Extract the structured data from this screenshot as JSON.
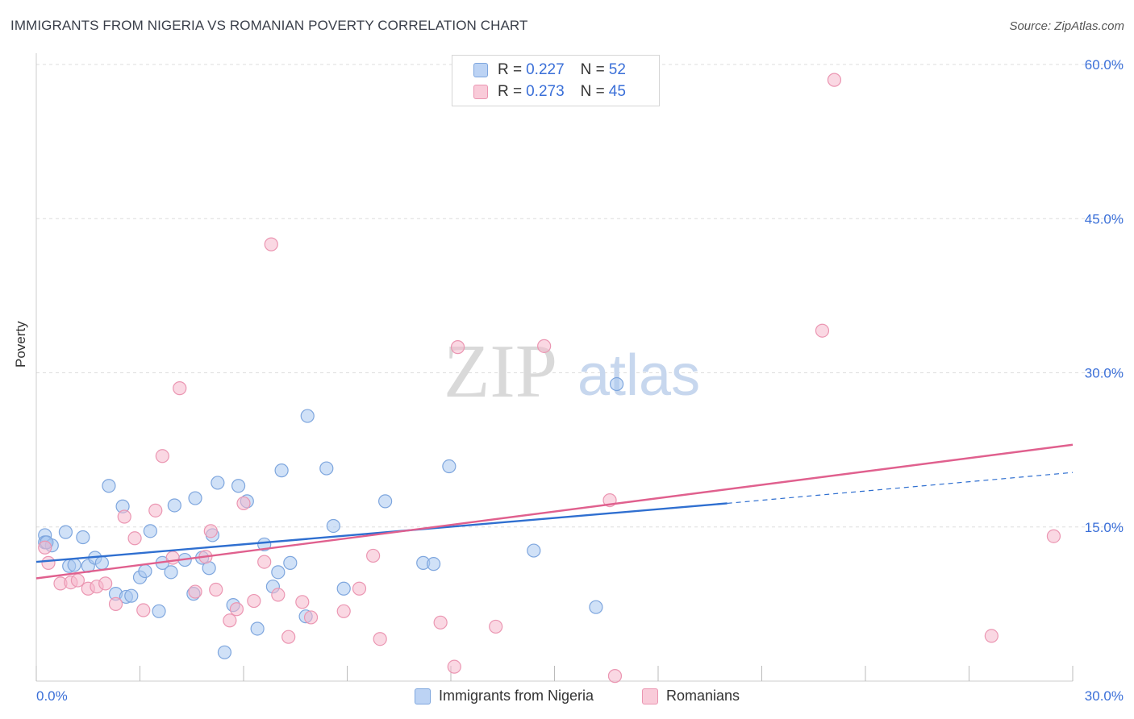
{
  "title": "IMMIGRANTS FROM NIGERIA VS ROMANIAN POVERTY CORRELATION CHART",
  "source": "Source: ZipAtlas.com",
  "watermark": {
    "zip": "ZIP",
    "atlas": "atlas"
  },
  "colors": {
    "blue_fill": "#aac8f0",
    "blue_stroke": "#7ea6de",
    "blue_line": "#2f6fd0",
    "pink_fill": "#f6b8cc",
    "pink_stroke": "#eb96b2",
    "pink_line": "#e0608e",
    "tick_label": "#3a6fd8",
    "grid": "#dddddd"
  },
  "legend": {
    "rows": [
      {
        "r_label": "R = ",
        "r_value": "0.227",
        "n_label": "N = ",
        "n_value": "52",
        "color": "blue"
      },
      {
        "r_label": "R = ",
        "r_value": "0.273",
        "n_label": "N = ",
        "n_value": "45",
        "color": "pink"
      }
    ]
  },
  "bottom_legend": [
    "Immigrants from Nigeria",
    "Romanians"
  ],
  "chart_data": {
    "type": "scatter",
    "xlabel": "",
    "ylabel": "Poverty",
    "xlim": [
      0,
      30
    ],
    "ylim": [
      0,
      60
    ],
    "x_tick_labels": [
      "0.0%",
      "30.0%"
    ],
    "y_ticks": [
      15,
      30,
      45,
      60
    ],
    "y_tick_labels": [
      "15.0%",
      "30.0%",
      "45.0%",
      "60.0%"
    ],
    "grid": true,
    "legend_position": "top-center",
    "series": [
      {
        "name": "Immigrants from Nigeria",
        "color": "blue",
        "points": [
          [
            0.25,
            14.2
          ],
          [
            0.25,
            13.5
          ],
          [
            0.45,
            13.2
          ],
          [
            0.85,
            14.5
          ],
          [
            0.95,
            11.2
          ],
          [
            1.1,
            11.3
          ],
          [
            1.35,
            14.0
          ],
          [
            1.5,
            11.2
          ],
          [
            1.7,
            12.0
          ],
          [
            1.9,
            11.5
          ],
          [
            2.1,
            19.0
          ],
          [
            2.3,
            8.5
          ],
          [
            2.5,
            17.0
          ],
          [
            2.6,
            8.2
          ],
          [
            2.75,
            8.3
          ],
          [
            3.0,
            10.1
          ],
          [
            3.15,
            10.7
          ],
          [
            3.3,
            14.6
          ],
          [
            3.55,
            6.8
          ],
          [
            3.65,
            11.5
          ],
          [
            3.9,
            10.6
          ],
          [
            4.0,
            17.1
          ],
          [
            4.3,
            11.8
          ],
          [
            4.55,
            8.5
          ],
          [
            4.6,
            17.8
          ],
          [
            4.8,
            12.0
          ],
          [
            5.0,
            11.0
          ],
          [
            5.1,
            14.2
          ],
          [
            5.25,
            19.3
          ],
          [
            5.45,
            2.8
          ],
          [
            5.7,
            7.4
          ],
          [
            5.85,
            19.0
          ],
          [
            6.1,
            17.5
          ],
          [
            6.4,
            5.1
          ],
          [
            6.6,
            13.3
          ],
          [
            6.85,
            9.2
          ],
          [
            7.0,
            10.6
          ],
          [
            7.1,
            20.5
          ],
          [
            7.35,
            11.5
          ],
          [
            7.8,
            6.3
          ],
          [
            7.85,
            25.8
          ],
          [
            8.4,
            20.7
          ],
          [
            8.6,
            15.1
          ],
          [
            8.9,
            9.0
          ],
          [
            10.1,
            17.5
          ],
          [
            11.2,
            11.5
          ],
          [
            11.5,
            11.4
          ],
          [
            11.95,
            20.9
          ],
          [
            14.4,
            12.7
          ],
          [
            16.2,
            7.2
          ],
          [
            16.8,
            28.9
          ],
          [
            0.3,
            13.5
          ]
        ]
      },
      {
        "name": "Romanians",
        "color": "pink",
        "points": [
          [
            0.25,
            13.0
          ],
          [
            0.35,
            11.5
          ],
          [
            0.7,
            9.5
          ],
          [
            1.0,
            9.6
          ],
          [
            1.2,
            9.8
          ],
          [
            1.5,
            9.0
          ],
          [
            1.75,
            9.2
          ],
          [
            2.0,
            9.5
          ],
          [
            2.3,
            7.5
          ],
          [
            2.55,
            16.0
          ],
          [
            2.85,
            13.9
          ],
          [
            3.1,
            6.9
          ],
          [
            3.45,
            16.6
          ],
          [
            3.65,
            21.9
          ],
          [
            3.95,
            12.0
          ],
          [
            4.15,
            28.5
          ],
          [
            4.6,
            8.7
          ],
          [
            4.9,
            12.1
          ],
          [
            5.05,
            14.6
          ],
          [
            5.2,
            8.9
          ],
          [
            5.6,
            5.9
          ],
          [
            5.8,
            7.0
          ],
          [
            6.0,
            17.3
          ],
          [
            6.3,
            7.8
          ],
          [
            6.6,
            11.6
          ],
          [
            6.8,
            42.5
          ],
          [
            7.0,
            8.4
          ],
          [
            7.3,
            4.3
          ],
          [
            7.7,
            7.7
          ],
          [
            7.95,
            6.2
          ],
          [
            8.9,
            6.8
          ],
          [
            9.35,
            9.0
          ],
          [
            9.75,
            12.2
          ],
          [
            9.95,
            4.1
          ],
          [
            11.7,
            5.7
          ],
          [
            12.1,
            1.4
          ],
          [
            12.2,
            32.5
          ],
          [
            13.3,
            5.3
          ],
          [
            14.7,
            32.6
          ],
          [
            16.6,
            17.6
          ],
          [
            16.75,
            0.5
          ],
          [
            22.75,
            34.1
          ],
          [
            23.1,
            58.5
          ],
          [
            27.65,
            4.4
          ],
          [
            29.45,
            14.1
          ]
        ]
      }
    ],
    "trendlines": [
      {
        "series": "Immigrants from Nigeria",
        "x": [
          0,
          20
        ],
        "y": [
          11.6,
          17.3
        ],
        "dashed_extension": [
          20,
          30
        ],
        "dashed_y": [
          17.3,
          20.3
        ]
      },
      {
        "series": "Romanians",
        "x": [
          0,
          30
        ],
        "y": [
          10.0,
          23.0
        ]
      }
    ]
  }
}
